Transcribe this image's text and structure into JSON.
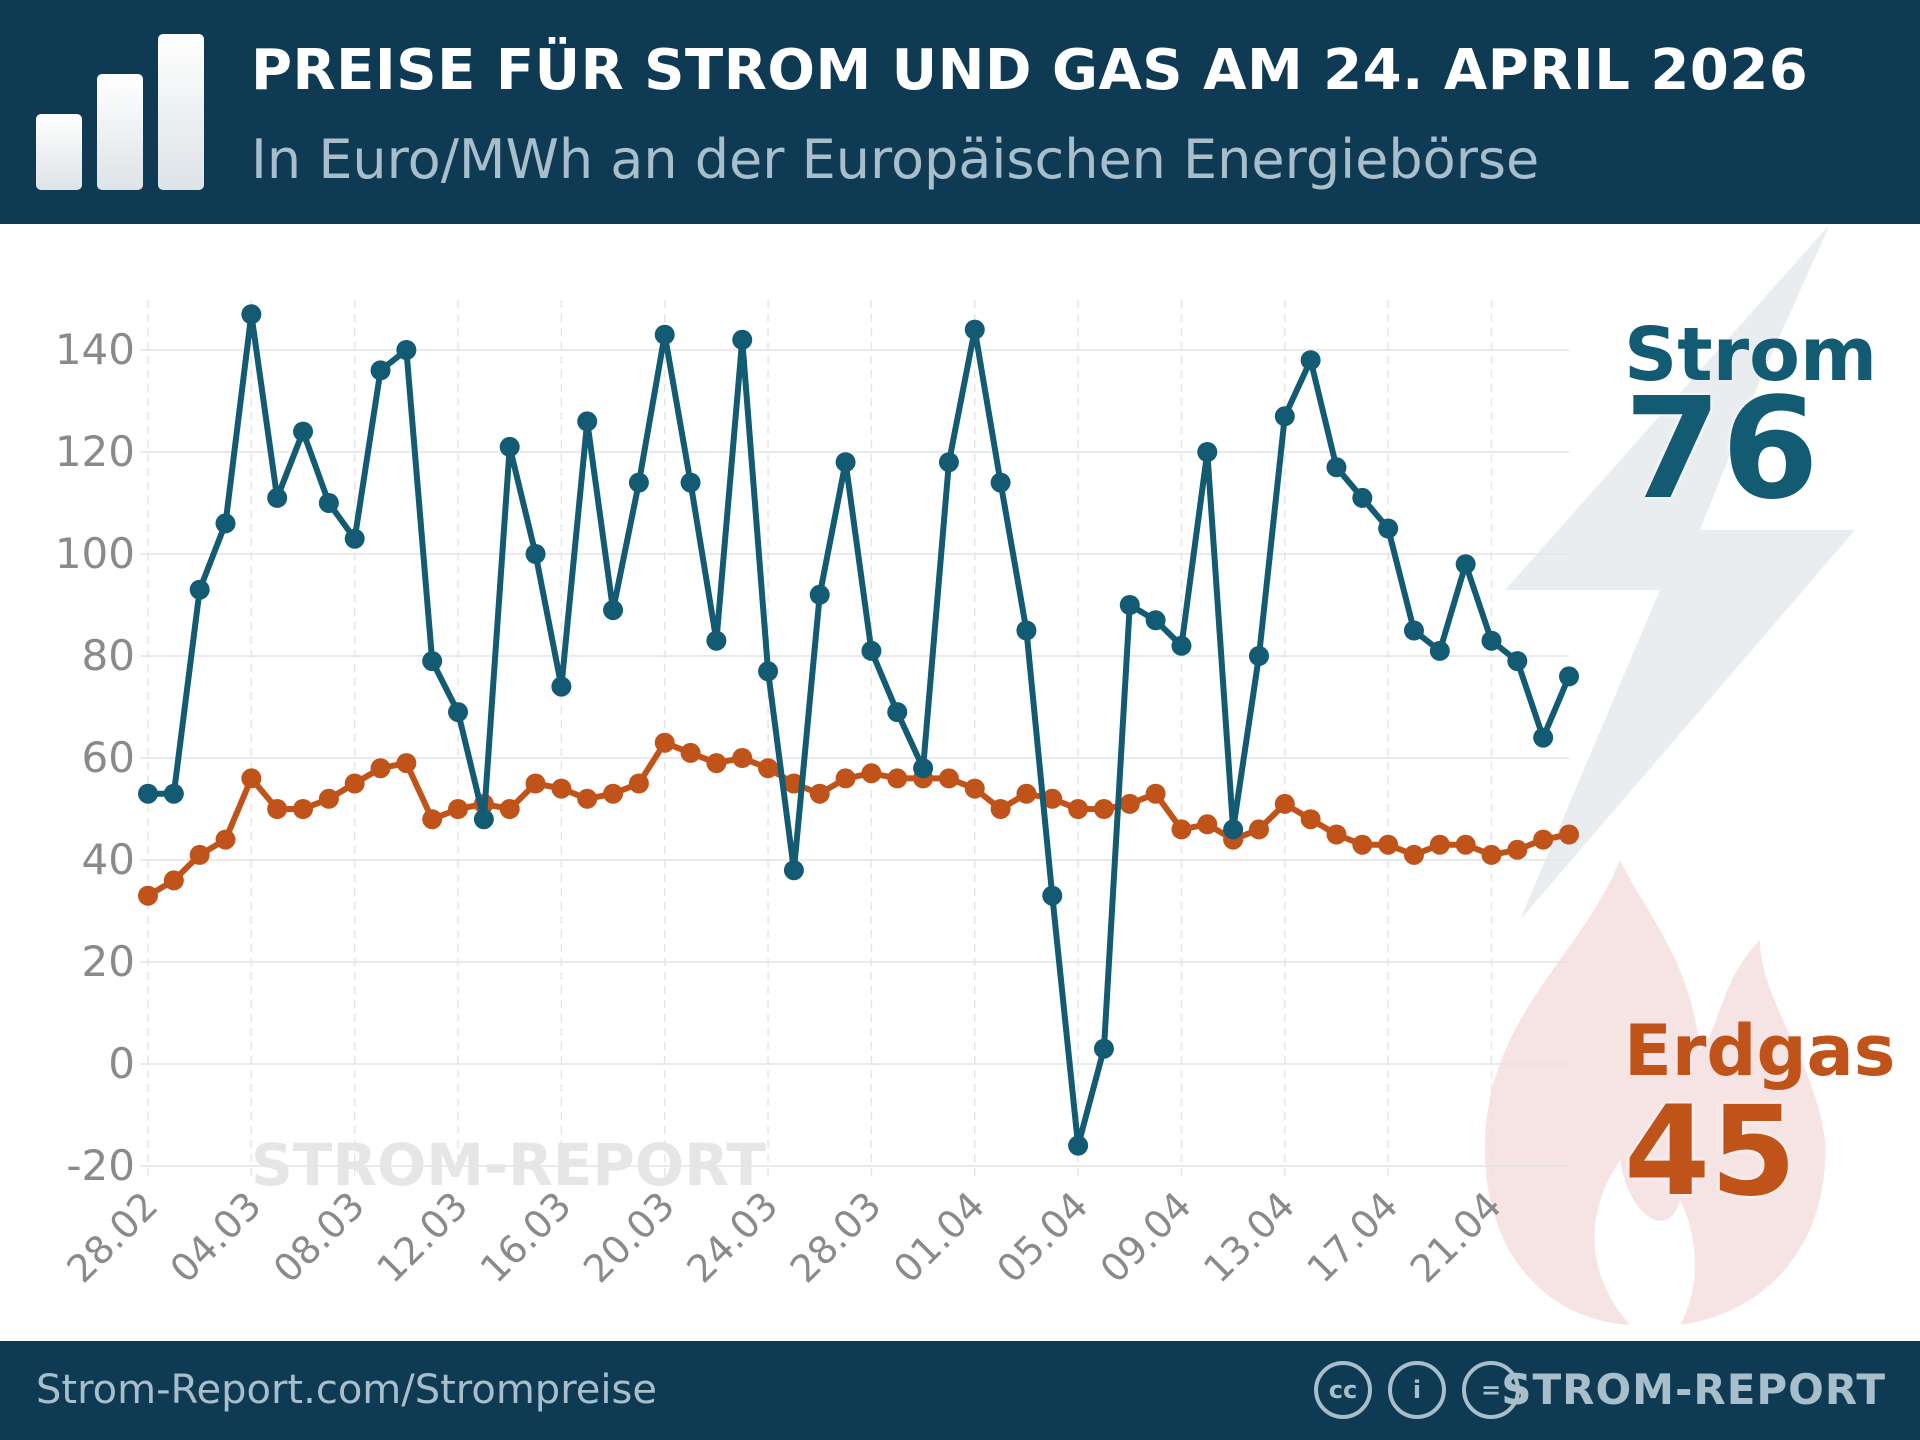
{
  "header": {
    "title": "PREISE FÜR STROM UND GAS AM 24. APRIL 2026",
    "subtitle": "In Euro/MWh an der Europäischen Energiebörse"
  },
  "callouts": {
    "strom_label": "Strom",
    "strom_value": "76",
    "gas_label": "Erdgas",
    "gas_value": "45"
  },
  "watermark": "STROM-REPORT",
  "footer": {
    "link": "Strom-Report.com/Strompreise",
    "license_icons": [
      "cc-icon",
      "by-attribution-icon",
      "nd-equals-icon"
    ],
    "brand": "STROM-REPORT"
  },
  "colors": {
    "header_bg": "#0e3b53",
    "strom": "#135a73",
    "gas": "#c0531a"
  },
  "chart_data": {
    "type": "line",
    "title": "PREISE FÜR STROM UND GAS AM 24. APRIL 2026",
    "subtitle": "In Euro/MWh an der Europäischen Energiebörse",
    "xlabel": "",
    "ylabel": "",
    "ylim": [
      -20,
      150
    ],
    "yticks": [
      -20,
      0,
      20,
      40,
      60,
      80,
      100,
      120,
      140
    ],
    "grid": true,
    "x": [
      "28.02",
      "01.03",
      "02.03",
      "03.03",
      "04.03",
      "05.03",
      "06.03",
      "07.03",
      "08.03",
      "09.03",
      "10.03",
      "11.03",
      "12.03",
      "13.03",
      "14.03",
      "15.03",
      "16.03",
      "17.03",
      "18.03",
      "19.03",
      "20.03",
      "21.03",
      "22.03",
      "23.03",
      "24.03",
      "25.03",
      "26.03",
      "27.03",
      "28.03",
      "29.03",
      "30.03",
      "31.03",
      "01.04",
      "02.04",
      "03.04",
      "04.04",
      "05.04",
      "06.04",
      "07.04",
      "08.04",
      "09.04",
      "10.04",
      "11.04",
      "12.04",
      "13.04",
      "14.04",
      "15.04",
      "16.04",
      "17.04",
      "18.04",
      "19.04",
      "20.04",
      "21.04",
      "22.04",
      "23.04",
      "24.04"
    ],
    "xtick_labels": [
      "28.02",
      "04.03",
      "08.03",
      "12.03",
      "16.03",
      "20.03",
      "24.03",
      "28.03",
      "01.04",
      "05.04",
      "09.04",
      "13.04",
      "17.04",
      "21.04"
    ],
    "series": [
      {
        "name": "Strom",
        "color": "#135a73",
        "values": [
          53,
          53,
          93,
          106,
          147,
          111,
          124,
          110,
          103,
          136,
          140,
          79,
          69,
          48,
          121,
          100,
          74,
          126,
          89,
          114,
          143,
          114,
          83,
          142,
          77,
          38,
          92,
          118,
          81,
          69,
          58,
          118,
          144,
          114,
          85,
          33,
          -16,
          3,
          90,
          87,
          82,
          120,
          46,
          80,
          127,
          138,
          117,
          111,
          105,
          85,
          81,
          98,
          83,
          79,
          64,
          76
        ]
      },
      {
        "name": "Erdgas",
        "color": "#c0531a",
        "values": [
          33,
          36,
          41,
          44,
          56,
          50,
          50,
          52,
          55,
          58,
          59,
          48,
          50,
          51,
          50,
          55,
          54,
          52,
          53,
          55,
          63,
          61,
          59,
          60,
          58,
          55,
          53,
          56,
          57,
          56,
          56,
          56,
          54,
          50,
          53,
          52,
          50,
          50,
          51,
          53,
          46,
          47,
          44,
          46,
          51,
          48,
          45,
          43,
          43,
          41,
          43,
          43,
          41,
          42,
          44,
          45
        ]
      }
    ]
  }
}
